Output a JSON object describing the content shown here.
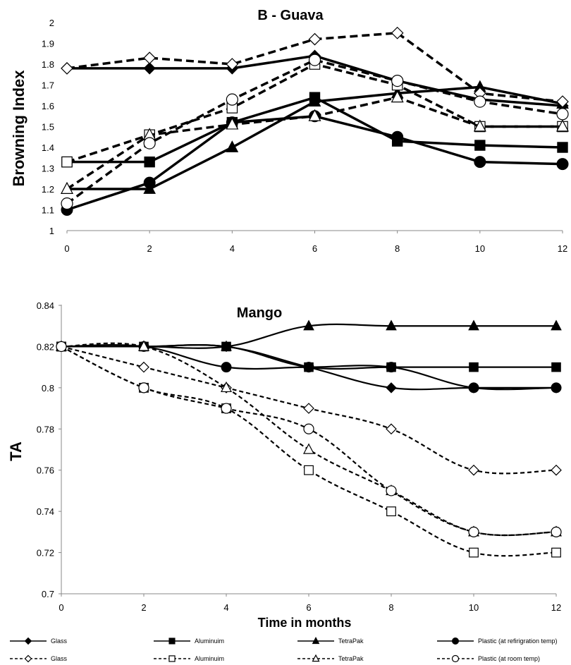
{
  "chart_data": [
    {
      "type": "line",
      "title": "B - Guava",
      "xlabel": "",
      "ylabel": "Browning Index",
      "x": [
        0,
        2,
        4,
        6,
        8,
        10,
        12
      ],
      "xlim": [
        0,
        12
      ],
      "ylim": [
        1,
        2
      ],
      "yticks": [
        "1",
        "1.1",
        "1.2",
        "1.3",
        "1.4",
        "1.5",
        "1.6",
        "1.7",
        "1.8",
        "1.9",
        "2"
      ],
      "xticks": [
        "0",
        "2",
        "4",
        "6",
        "8",
        "10",
        "12"
      ],
      "grid": false,
      "series": [
        {
          "name": "Glass",
          "marker": "diamond",
          "filled": true,
          "dashed": false,
          "values": [
            1.78,
            1.78,
            1.78,
            1.84,
            1.72,
            1.63,
            1.6
          ]
        },
        {
          "name": "Aluminuim",
          "marker": "square",
          "filled": true,
          "dashed": false,
          "values": [
            1.33,
            1.33,
            1.52,
            1.64,
            1.43,
            1.41,
            1.4
          ]
        },
        {
          "name": "TetraPak",
          "marker": "triangle",
          "filled": true,
          "dashed": false,
          "values": [
            1.2,
            1.2,
            1.4,
            1.62,
            1.66,
            1.69,
            1.61
          ]
        },
        {
          "name": "Plastic (at refirigration temp)",
          "marker": "circle",
          "filled": true,
          "dashed": false,
          "values": [
            1.1,
            1.23,
            1.52,
            1.55,
            1.45,
            1.33,
            1.32
          ]
        },
        {
          "name": "Glass",
          "marker": "diamond",
          "filled": false,
          "dashed": true,
          "values": [
            1.78,
            1.83,
            1.8,
            1.92,
            1.95,
            1.66,
            1.62
          ]
        },
        {
          "name": "Aluminuim",
          "marker": "square",
          "filled": false,
          "dashed": true,
          "values": [
            1.33,
            1.46,
            1.59,
            1.8,
            1.7,
            1.5,
            1.5
          ]
        },
        {
          "name": "TetraPak",
          "marker": "triangle",
          "filled": false,
          "dashed": true,
          "values": [
            1.2,
            1.46,
            1.51,
            1.55,
            1.64,
            1.5,
            1.5
          ]
        },
        {
          "name": "Plastic (at room temp)",
          "marker": "circle",
          "filled": false,
          "dashed": true,
          "values": [
            1.13,
            1.42,
            1.63,
            1.82,
            1.72,
            1.62,
            1.56
          ]
        }
      ]
    },
    {
      "type": "line",
      "title": "Mango",
      "xlabel": "Time in months",
      "ylabel": "TA",
      "x": [
        0,
        2,
        4,
        6,
        8,
        10,
        12
      ],
      "xlim": [
        0,
        12
      ],
      "ylim": [
        0.7,
        0.84
      ],
      "yticks": [
        "0.7",
        "0.72",
        "0.74",
        "0.76",
        "0.78",
        "0.8",
        "0.82",
        "0.84"
      ],
      "xticks": [
        "0",
        "2",
        "4",
        "6",
        "8",
        "10",
        "12"
      ],
      "grid": false,
      "series": [
        {
          "name": "Glass",
          "marker": "diamond",
          "filled": true,
          "dashed": false,
          "values": [
            0.82,
            0.82,
            0.82,
            0.81,
            0.8,
            0.8,
            0.8
          ]
        },
        {
          "name": "Aluminuim",
          "marker": "square",
          "filled": true,
          "dashed": false,
          "values": [
            0.82,
            0.82,
            0.82,
            0.81,
            0.81,
            0.81,
            0.81
          ]
        },
        {
          "name": "TetraPak",
          "marker": "triangle",
          "filled": true,
          "dashed": false,
          "values": [
            0.82,
            0.82,
            0.82,
            0.83,
            0.83,
            0.83,
            0.83
          ]
        },
        {
          "name": "Plastic (at refirigration temp)",
          "marker": "circle",
          "filled": true,
          "dashed": false,
          "values": [
            0.82,
            0.82,
            0.81,
            0.81,
            0.81,
            0.8,
            0.8
          ]
        },
        {
          "name": "Glass",
          "marker": "diamond",
          "filled": false,
          "dashed": true,
          "values": [
            0.82,
            0.81,
            0.8,
            0.79,
            0.78,
            0.76,
            0.76
          ]
        },
        {
          "name": "Aluminuim",
          "marker": "square",
          "filled": false,
          "dashed": true,
          "values": [
            0.82,
            0.8,
            0.79,
            0.76,
            0.74,
            0.72,
            0.72
          ]
        },
        {
          "name": "TetraPak",
          "marker": "triangle",
          "filled": false,
          "dashed": true,
          "values": [
            0.82,
            0.82,
            0.8,
            0.77,
            0.75,
            0.73,
            0.73
          ]
        },
        {
          "name": "Plastic (at room temp)",
          "marker": "circle",
          "filled": false,
          "dashed": true,
          "values": [
            0.82,
            0.8,
            0.79,
            0.78,
            0.75,
            0.73,
            0.73
          ]
        }
      ]
    }
  ],
  "legend": {
    "placement": "bottom",
    "rows": [
      [
        "Glass",
        "Aluminuim",
        "TetraPak",
        "Plastic (at refirigration temp)"
      ],
      [
        "Glass",
        "Aluminuim",
        "TetraPak",
        "Plastic (at room temp)"
      ]
    ]
  }
}
